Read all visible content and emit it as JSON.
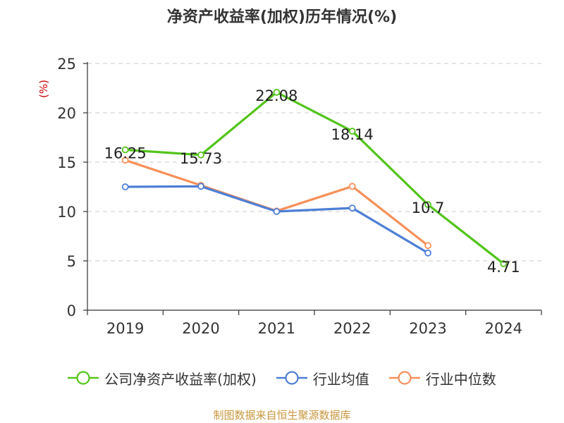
{
  "title": "净资产收益率(加权)历年情况(%)",
  "source_note": "制图数据来自恒生聚源数据库",
  "colors": {
    "axis": "#333333",
    "grid": "#cccccc",
    "label": "#222222",
    "unit": "#cc0000"
  },
  "chart_data": {
    "type": "line",
    "title": "净资产收益率(加权)历年情况(%)",
    "ylabel": "(%)",
    "xlabel": "",
    "categories": [
      "2019",
      "2020",
      "2021",
      "2022",
      "2023",
      "2024"
    ],
    "ylim": [
      0,
      25
    ],
    "yticks": [
      0,
      5,
      10,
      15,
      20,
      25
    ],
    "grid": true,
    "legend_position": "bottom",
    "series": [
      {
        "name": "公司净资产收益率(加权)",
        "color": "#52c41a",
        "values": [
          16.25,
          15.73,
          22.08,
          18.14,
          10.7,
          4.71
        ],
        "labels": [
          "16.25",
          "15.73",
          "22.08",
          "18.14",
          "10.7",
          "4.71"
        ]
      },
      {
        "name": "行业均值",
        "color": "#4e7fd6",
        "values": [
          12.5,
          12.55,
          10.0,
          10.35,
          5.8,
          null
        ]
      },
      {
        "name": "行业中位数",
        "color": "#f6905a",
        "values": [
          15.2,
          12.65,
          10.05,
          12.55,
          6.55,
          null
        ]
      }
    ]
  }
}
